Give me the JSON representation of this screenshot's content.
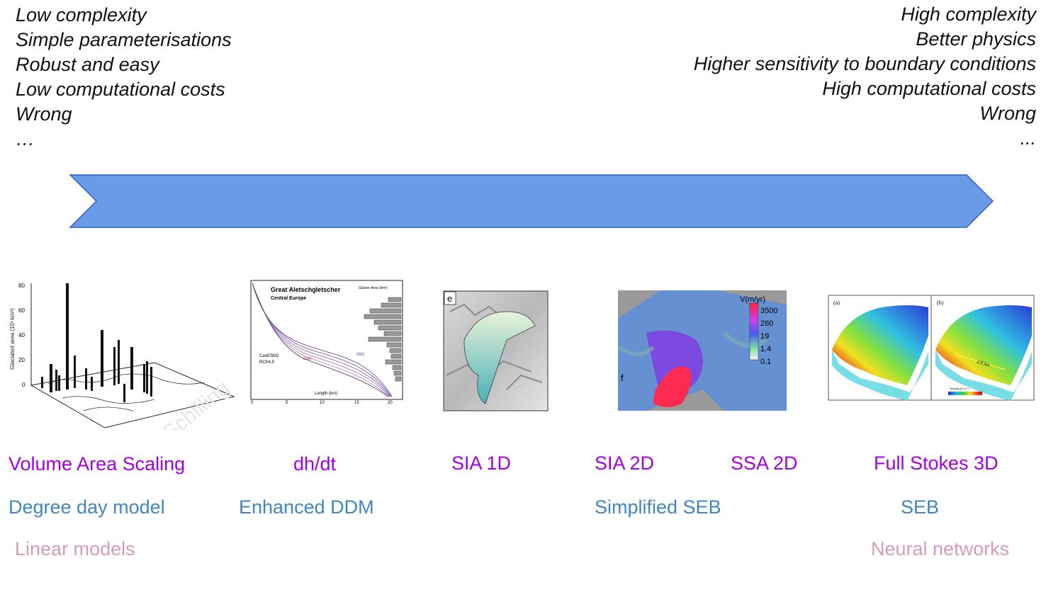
{
  "left_traits": [
    "Low complexity",
    "Simple parameterisations",
    "Robust and easy",
    "Low computational costs",
    "Wrong",
    "…"
  ],
  "right_traits": [
    "High complexity",
    "Better physics",
    "Higher sensitivity to boundary conditions",
    "High computational costs",
    "Wrong",
    "..."
  ],
  "arrow_color": "#6a9be8",
  "arrow_border": "#2f5fbf",
  "figures": {
    "vas": {
      "y_label": "Glaciated area (10³ km²)",
      "y_ticks": [
        "80",
        "60",
        "40",
        "20",
        "0"
      ],
      "watermark": "Schilling"
    },
    "dhdt": {
      "title": "Great Aletschgletscher",
      "subtitle": "Central Europe",
      "glacier_area_label": "Glacier Area (km²)",
      "x_label": "Length (km)",
      "x_ticks": [
        "0",
        "5",
        "10",
        "15",
        "20"
      ],
      "model": "CanESM2",
      "scenario": "RCP4.5",
      "year_start": "2100",
      "year_end": "2003"
    },
    "sia1d": {
      "panel": "e"
    },
    "sia2d": {
      "panel": "f",
      "legend_title": "V(m/yr)",
      "legend_ticks": [
        "3500",
        "260",
        "19",
        "1.4",
        "0.1"
      ]
    },
    "stokes": {
      "panel_a": "(a)",
      "panel_b": "(b)",
      "distance": "2.8 km",
      "velocity_label": "Velocity (m a⁻¹)"
    }
  },
  "labels": {
    "row1": [
      "Volume Area Scaling",
      "dh/dt",
      "SIA 1D",
      "SIA 2D",
      "SSA 2D",
      "Full Stokes 3D"
    ],
    "row2": [
      "Degree day model",
      "Enhanced DDM",
      "Simplified SEB",
      "SEB"
    ],
    "row3": [
      "Linear models",
      "Neural networks"
    ]
  },
  "colors": {
    "purple": "#a300e6",
    "blue": "#3f86c2",
    "pink": "#d79ab7"
  }
}
